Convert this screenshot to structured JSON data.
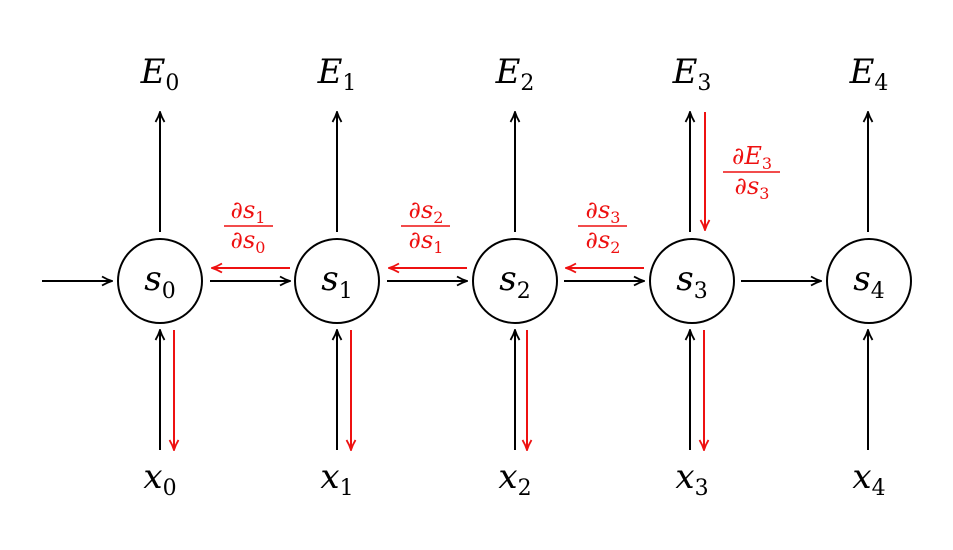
{
  "diagram": {
    "nodes": [
      {
        "base": "s",
        "sub": "0"
      },
      {
        "base": "s",
        "sub": "1"
      },
      {
        "base": "s",
        "sub": "2"
      },
      {
        "base": "s",
        "sub": "3"
      },
      {
        "base": "s",
        "sub": "4"
      }
    ],
    "outputs": [
      {
        "base": "E",
        "sub": "0"
      },
      {
        "base": "E",
        "sub": "1"
      },
      {
        "base": "E",
        "sub": "2"
      },
      {
        "base": "E",
        "sub": "3"
      },
      {
        "base": "E",
        "sub": "4"
      }
    ],
    "inputs": [
      {
        "base": "x",
        "sub": "0"
      },
      {
        "base": "x",
        "sub": "1"
      },
      {
        "base": "x",
        "sub": "2"
      },
      {
        "base": "x",
        "sub": "3"
      },
      {
        "base": "x",
        "sub": "4"
      }
    ],
    "gradients": [
      {
        "num": "∂s",
        "num_sub": "1",
        "den": "∂s",
        "den_sub": "0"
      },
      {
        "num": "∂s",
        "num_sub": "2",
        "den": "∂s",
        "den_sub": "1"
      },
      {
        "num": "∂s",
        "num_sub": "3",
        "den": "∂s",
        "den_sub": "2"
      }
    ],
    "output_gradient": {
      "num": "∂E",
      "num_sub": "3",
      "den": "∂s",
      "den_sub": "3"
    },
    "colors": {
      "forward": "#000000",
      "backprop": "#ee1111"
    }
  }
}
